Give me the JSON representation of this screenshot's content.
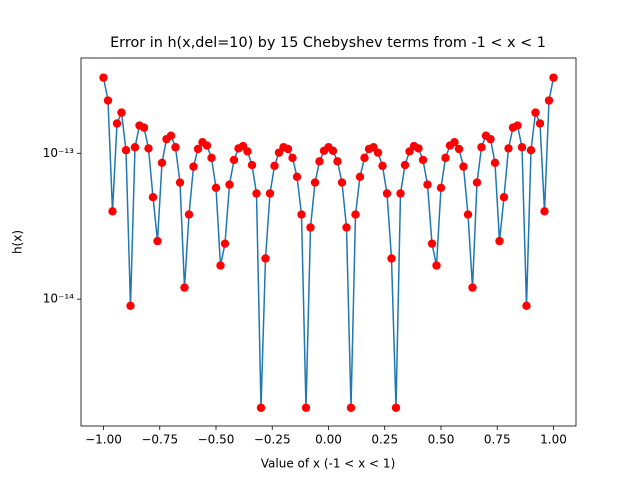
{
  "chart_data": {
    "type": "line",
    "title": "Error in h(x,del=10) by 15 Chebyshev terms from -1 < x < 1",
    "xlabel": "Value of x (-1 < x < 1)",
    "ylabel": "h(x)",
    "color": "#1f77b4",
    "marker_color": "#ff0000",
    "yscale": "log",
    "xlim": [
      -1.1,
      1.1
    ],
    "ylim": [
      1.35e-15,
      4.5e-13
    ],
    "xticks": [
      {
        "value": -1,
        "label": "−1.00"
      },
      {
        "value": -0.75,
        "label": "−0.75"
      },
      {
        "value": -0.5,
        "label": "−0.50"
      },
      {
        "value": -0.25,
        "label": "−0.25"
      },
      {
        "value": 0,
        "label": "0.00"
      },
      {
        "value": 0.25,
        "label": "0.25"
      },
      {
        "value": 0.5,
        "label": "0.50"
      },
      {
        "value": 0.75,
        "label": "0.75"
      },
      {
        "value": 1,
        "label": "1.00"
      }
    ],
    "yticks": [
      {
        "value": 1e-14,
        "label": "10⁻¹⁴"
      },
      {
        "value": 1e-13,
        "label": "10⁻¹³"
      }
    ],
    "x": [
      -1,
      -0.98,
      -0.96,
      -0.94,
      -0.92,
      -0.9,
      -0.88,
      -0.86,
      -0.84,
      -0.82,
      -0.8,
      -0.78,
      -0.76,
      -0.74,
      -0.72,
      -0.7,
      -0.68,
      -0.66,
      -0.64,
      -0.62,
      -0.6,
      -0.58,
      -0.56,
      -0.54,
      -0.52,
      -0.5,
      -0.48,
      -0.46,
      -0.44,
      -0.42,
      -0.4,
      -0.38,
      -0.36,
      -0.34,
      -0.32,
      -0.3,
      -0.28,
      -0.26,
      -0.24,
      -0.22,
      -0.2,
      -0.18,
      -0.16,
      -0.14,
      -0.12,
      -0.1,
      -0.08,
      -0.06,
      -0.04,
      -0.02,
      0,
      0.02,
      0.04,
      0.06,
      0.08,
      0.1,
      0.12,
      0.14,
      0.16,
      0.18,
      0.2,
      0.22,
      0.24,
      0.26,
      0.28,
      0.3,
      0.32,
      0.34,
      0.36,
      0.38,
      0.4,
      0.42,
      0.44,
      0.46,
      0.48,
      0.5,
      0.52,
      0.54,
      0.56,
      0.58,
      0.6,
      0.62,
      0.64,
      0.66,
      0.68,
      0.7,
      0.72,
      0.74,
      0.76,
      0.78,
      0.8,
      0.82,
      0.84,
      0.86,
      0.88,
      0.9,
      0.92,
      0.94,
      0.96,
      0.98,
      1
    ],
    "values": [
      3.3e-13,
      2.3e-13,
      4e-14,
      1.6e-13,
      1.9e-13,
      1.05e-13,
      9e-15,
      1.1e-13,
      1.55e-13,
      1.5e-13,
      1.08e-13,
      5e-14,
      2.5e-14,
      8.6e-14,
      1.25e-13,
      1.32e-13,
      1.1e-13,
      6.3e-14,
      1.2e-14,
      3.8e-14,
      8.1e-14,
      1.07e-13,
      1.19e-13,
      1.13e-13,
      9.3e-14,
      5.8e-14,
      1.7e-14,
      2.4e-14,
      6.1e-14,
      9e-14,
      1.08e-13,
      1.12e-13,
      1.03e-13,
      8.3e-14,
      5.3e-14,
      1.8e-15,
      1.9e-14,
      5.3e-14,
      8.2e-14,
      1.01e-13,
      1.1e-13,
      1.07e-13,
      9.3e-14,
      6.9e-14,
      3.8e-14,
      1.8e-15,
      3.1e-14,
      6.3e-14,
      8.8e-14,
      1.04e-13,
      1.1e-13,
      1.04e-13,
      8.8e-14,
      6.3e-14,
      3.1e-14,
      1.8e-15,
      3.8e-14,
      6.9e-14,
      9.3e-14,
      1.07e-13,
      1.1e-13,
      1.01e-13,
      8.2e-14,
      5.3e-14,
      1.9e-14,
      1.8e-15,
      5.3e-14,
      8.3e-14,
      1.03e-13,
      1.12e-13,
      1.08e-13,
      9e-14,
      6.1e-14,
      2.4e-14,
      1.7e-14,
      5.8e-14,
      9.3e-14,
      1.13e-13,
      1.19e-13,
      1.07e-13,
      8.1e-14,
      3.8e-14,
      1.2e-14,
      6.3e-14,
      1.1e-13,
      1.32e-13,
      1.25e-13,
      8.6e-14,
      2.5e-14,
      5e-14,
      1.08e-13,
      1.5e-13,
      1.55e-13,
      1.1e-13,
      9e-15,
      1.05e-13,
      1.9e-13,
      1.6e-13,
      4e-14,
      2.3e-13,
      3.3e-13
    ]
  }
}
